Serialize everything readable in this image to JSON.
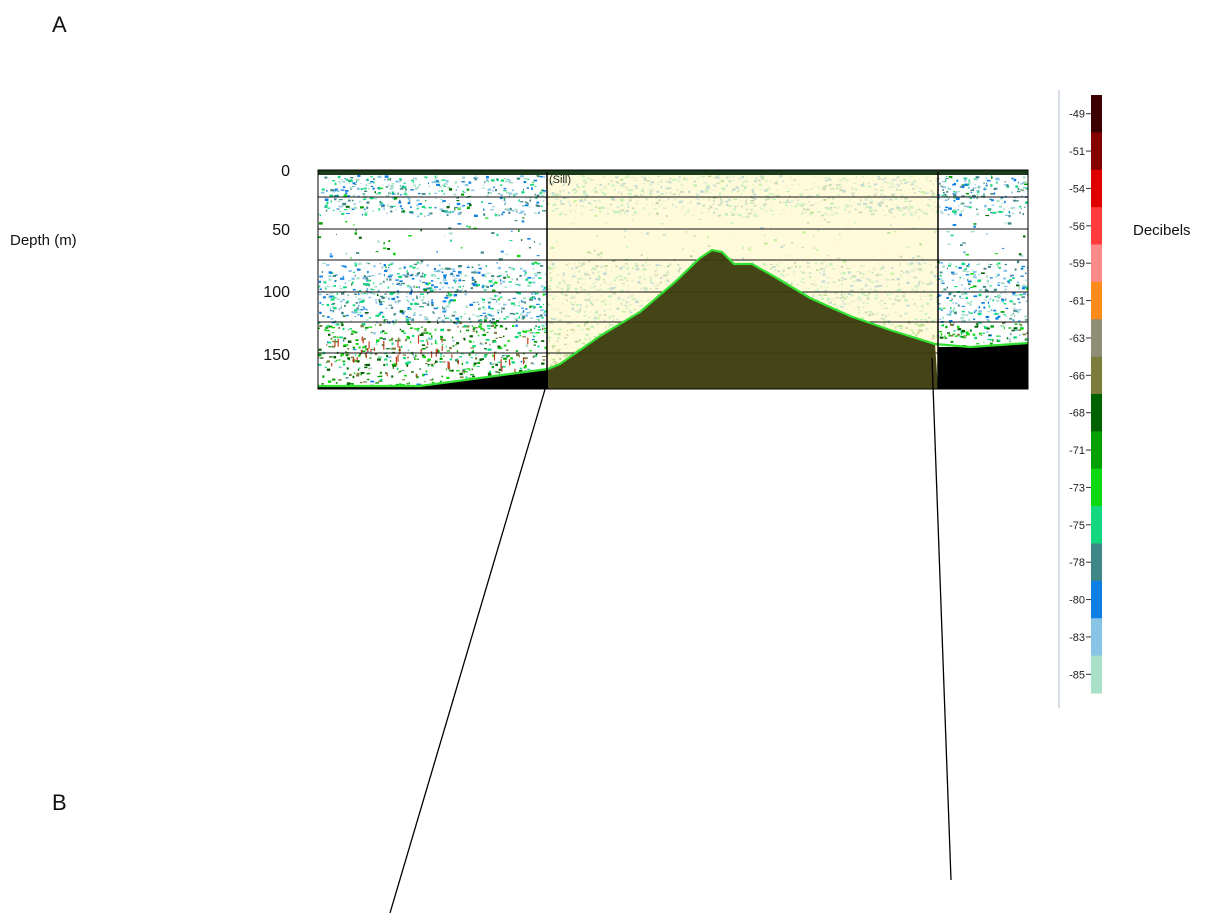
{
  "panels": {
    "a": "A",
    "b": "B"
  },
  "depth_axis": {
    "label": "Depth (m)",
    "ticks": [
      "0",
      "50",
      "100",
      "150"
    ]
  },
  "colorbar": {
    "unit": "Decibels",
    "levels": [
      {
        "label": "-49",
        "color": "#3a0000"
      },
      {
        "label": "-51",
        "color": "#850000"
      },
      {
        "label": "-54",
        "color": "#e00000"
      },
      {
        "label": "-56",
        "color": "#ff3b3b"
      },
      {
        "label": "-59",
        "color": "#ff8a8a"
      },
      {
        "label": "-61",
        "color": "#ff8c1a"
      },
      {
        "label": "-63",
        "color": "#8f8f78"
      },
      {
        "label": "-66",
        "color": "#7c7c3c"
      },
      {
        "label": "-68",
        "color": "#006100"
      },
      {
        "label": "-71",
        "color": "#00a000"
      },
      {
        "label": "-73",
        "color": "#0ed80e"
      },
      {
        "label": "-75",
        "color": "#14d880"
      },
      {
        "label": "-78",
        "color": "#3f8686"
      },
      {
        "label": "-80",
        "color": "#0c7ee4"
      },
      {
        "label": "-83",
        "color": "#88c4e6"
      },
      {
        "label": "-85",
        "color": "#a8e0c8"
      }
    ]
  },
  "echogram": {
    "region_label": "(Sill)",
    "colors": {
      "seabed": "#3a3a0c",
      "bottom_line": "#32e032",
      "region_fill": "#fffacd",
      "below_bottom": "#000000"
    }
  },
  "chart_data": {
    "type": "heatmap",
    "title": "",
    "ylabel": "Depth (m)",
    "yticks": [
      0,
      50,
      100,
      150
    ],
    "ylim": [
      0,
      175
    ],
    "y_inverted": true,
    "colorbar_label": "Decibels",
    "colorbar_ticks": [
      -49,
      -51,
      -54,
      -56,
      -59,
      -61,
      -63,
      -66,
      -68,
      -71,
      -73,
      -75,
      -78,
      -80,
      -83,
      -85
    ],
    "region": "(Sill)"
  }
}
